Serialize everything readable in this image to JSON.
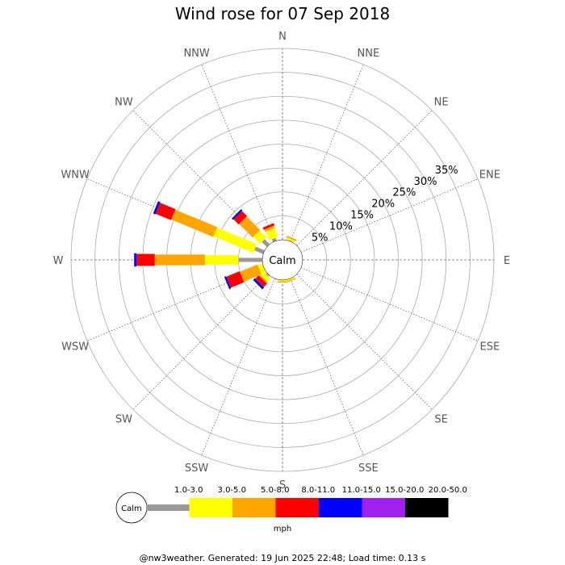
{
  "chart_data": {
    "type": "windrose",
    "title": "Wind rose for 07 Sep 2018",
    "directions": [
      "N",
      "NNE",
      "NE",
      "ENE",
      "E",
      "ESE",
      "SE",
      "SSE",
      "S",
      "SSW",
      "SW",
      "WSW",
      "W",
      "WNW",
      "NW",
      "NNW"
    ],
    "radial_ticks": [
      "5%",
      "10%",
      "15%",
      "20%",
      "25%",
      "30%",
      "35%"
    ],
    "radial_values": [
      5,
      10,
      15,
      20,
      25,
      30,
      35
    ],
    "calm_label": "Calm",
    "speed_bins": [
      {
        "label": "1.0-3.0",
        "color": "#999999"
      },
      {
        "label": "3.0-5.0",
        "color": "#ffff00"
      },
      {
        "label": "5.0-8.0",
        "color": "#ffa500"
      },
      {
        "label": "8.0-11.0",
        "color": "#ff0000"
      },
      {
        "label": "11.0-15.0",
        "color": "#0000ff"
      },
      {
        "label": "15.0-20.0",
        "color": "#a020f0"
      },
      {
        "label": "20.0-50.0",
        "color": "#000000"
      }
    ],
    "units": "mph",
    "series": [
      {
        "direction": "N",
        "percent": [
          0,
          0,
          0,
          0,
          0,
          0,
          0
        ]
      },
      {
        "direction": "NNE",
        "percent": [
          0.1,
          0.4,
          0.3,
          0,
          0,
          0,
          0
        ]
      },
      {
        "direction": "NE",
        "percent": [
          0,
          0,
          0,
          0,
          0,
          0,
          0
        ]
      },
      {
        "direction": "ENE",
        "percent": [
          0,
          0,
          0,
          0,
          0,
          0,
          0
        ]
      },
      {
        "direction": "E",
        "percent": [
          0,
          0,
          0,
          0,
          0,
          0,
          0
        ]
      },
      {
        "direction": "ESE",
        "percent": [
          0,
          0,
          0,
          0,
          0,
          0,
          0
        ]
      },
      {
        "direction": "SE",
        "percent": [
          0,
          0,
          0,
          0,
          0,
          0,
          0
        ]
      },
      {
        "direction": "SSE",
        "percent": [
          0,
          0.3,
          0.2,
          0,
          0,
          0,
          0
        ]
      },
      {
        "direction": "S",
        "percent": [
          0,
          0.3,
          0.2,
          0,
          0,
          0,
          0
        ]
      },
      {
        "direction": "SSW",
        "percent": [
          0,
          0,
          0,
          0,
          0,
          0,
          0
        ]
      },
      {
        "direction": "SW",
        "percent": [
          0.3,
          1.0,
          0.3,
          1.0,
          0.5,
          0,
          0
        ]
      },
      {
        "direction": "WSW",
        "percent": [
          0,
          1.0,
          4.0,
          3.0,
          0.4,
          0,
          0
        ]
      },
      {
        "direction": "W",
        "percent": [
          5.0,
          7.0,
          10.5,
          3.8,
          0.5,
          0,
          0
        ]
      },
      {
        "direction": "WNW",
        "percent": [
          2.0,
          9.0,
          9.5,
          3.5,
          0.5,
          0,
          0
        ]
      },
      {
        "direction": "NW",
        "percent": [
          1.5,
          2.0,
          4.0,
          1.5,
          0.4,
          0,
          0
        ]
      },
      {
        "direction": "NNW",
        "percent": [
          0.6,
          2.0,
          0.5,
          0.5,
          0,
          0,
          0
        ]
      }
    ]
  },
  "footer": "@nw3weather. Generated: 19 Jun 2025 22:48; Load time: 0.13 s"
}
